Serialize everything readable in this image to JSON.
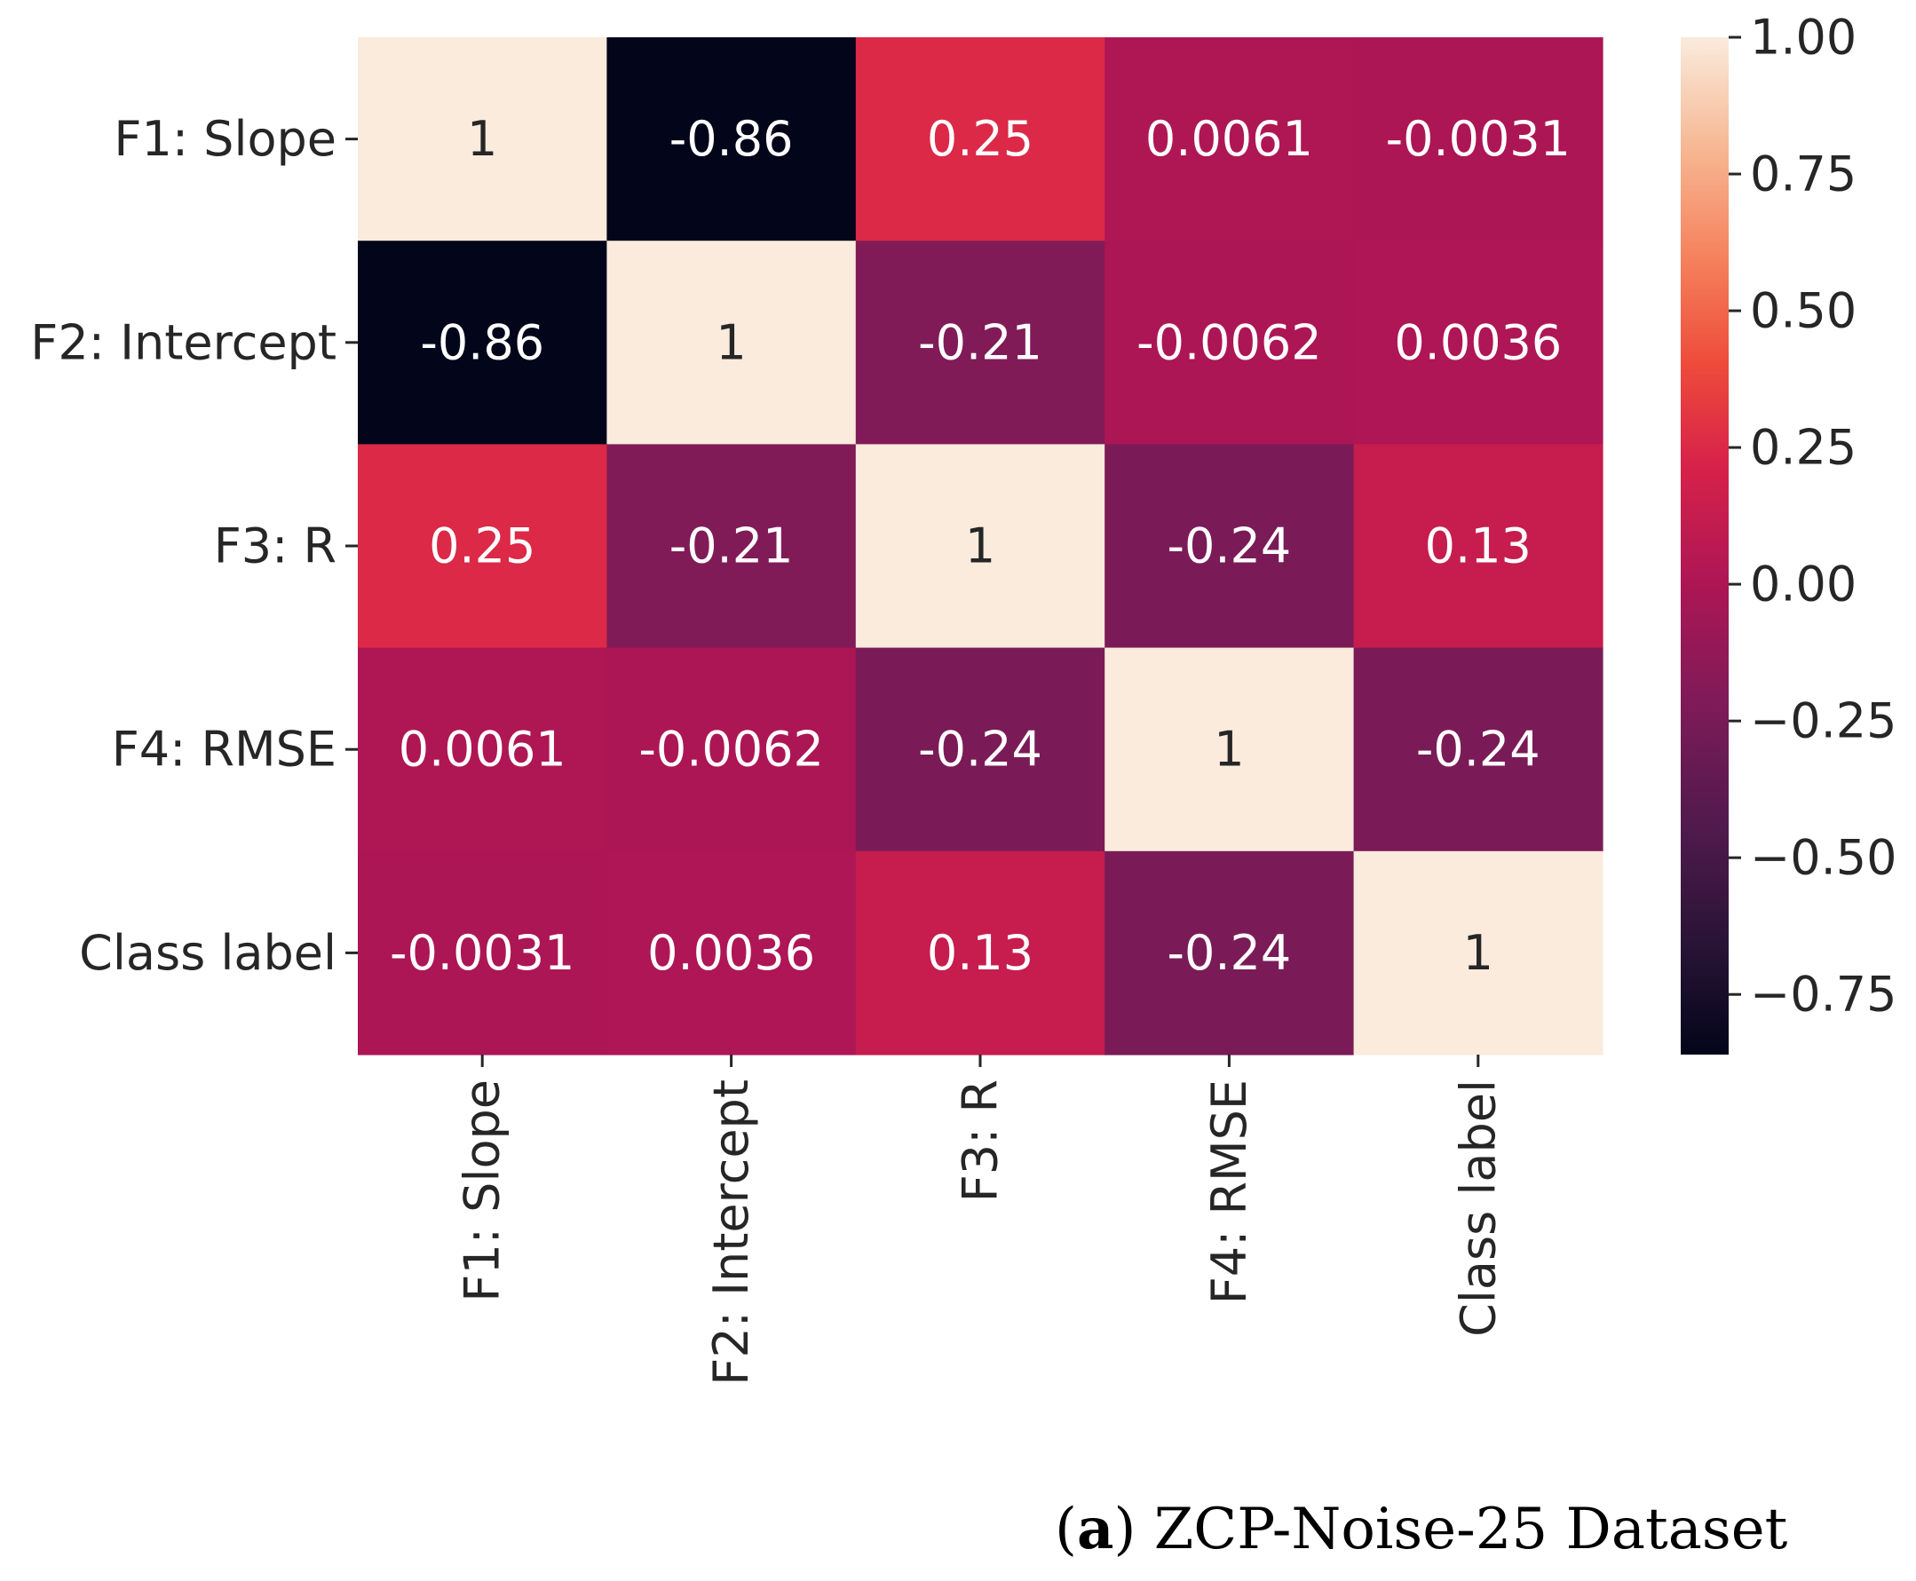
{
  "chart_data": {
    "type": "heatmap",
    "rows": [
      "F1: Slope",
      "F2: Intercept",
      "F3: R",
      "F4: RMSE",
      "Class label"
    ],
    "columns": [
      "F1: Slope",
      "F2: Intercept",
      "F3: R",
      "F4: RMSE",
      "Class label"
    ],
    "values": [
      [
        1,
        -0.86,
        0.25,
        0.0061,
        -0.0031
      ],
      [
        -0.86,
        1,
        -0.21,
        -0.0062,
        0.0036
      ],
      [
        0.25,
        -0.21,
        1,
        -0.24,
        0.13
      ],
      [
        0.0061,
        -0.0062,
        -0.24,
        1,
        -0.24
      ],
      [
        -0.0031,
        0.0036,
        0.13,
        -0.24,
        1
      ]
    ],
    "cell_labels": [
      [
        "1",
        "-0.86",
        "0.25",
        "0.0061",
        "-0.0031"
      ],
      [
        "-0.86",
        "1",
        "-0.21",
        "-0.0062",
        "0.0036"
      ],
      [
        "0.25",
        "-0.21",
        "1",
        "-0.24",
        "0.13"
      ],
      [
        "0.0061",
        "-0.0062",
        "-0.24",
        "1",
        "-0.24"
      ],
      [
        "-0.0031",
        "0.0036",
        "0.13",
        "-0.24",
        "1"
      ]
    ],
    "colorbar": {
      "range": [
        -0.86,
        1.0
      ],
      "ticks": [
        1.0,
        0.75,
        0.5,
        0.25,
        0.0,
        -0.25,
        -0.5,
        -0.75
      ],
      "tick_labels": [
        "1.00",
        "0.75",
        "0.50",
        "0.25",
        "0.00",
        "−0.25",
        "−0.50",
        "−0.75"
      ],
      "colormap": "rocket",
      "position": "right"
    }
  },
  "caption": {
    "letter": "a",
    "text": "ZCP-Noise-25 Dataset"
  }
}
